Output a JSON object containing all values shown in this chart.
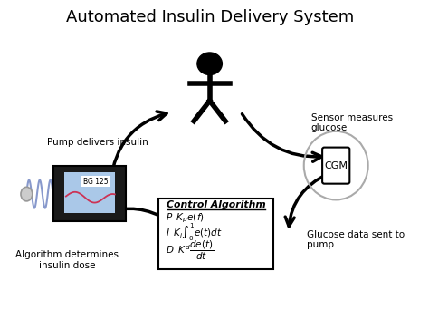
{
  "title": "Automated Insulin Delivery System",
  "title_fontsize": 13,
  "labels": {
    "pump": "Pump delivers insulin",
    "sensor": "Sensor measures\nglucose",
    "cgm_label": "CGM",
    "glucose_sent": "Glucose data sent to\npump",
    "algorithm": "Algorithm determines\ninsulin dose",
    "bg_value": "BG 125"
  },
  "algo_title": "Control Algorithm"
}
